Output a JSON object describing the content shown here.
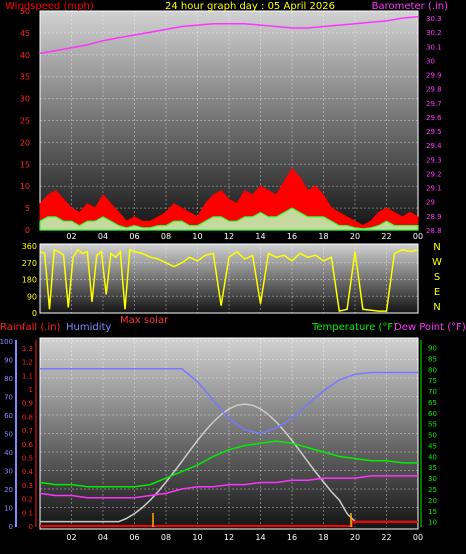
{
  "chart_data": [
    {
      "type": "line",
      "title": "24 hour graph day : 05 April 2026",
      "left_axis_label": "Windspeed (mph)",
      "right_axis_label": "Barometer (.in)",
      "x_ticks": [
        "02",
        "04",
        "06",
        "08",
        "10",
        "12",
        "14",
        "16",
        "18",
        "20",
        "22",
        "00"
      ],
      "left_ticks": [
        "0",
        "5",
        "10",
        "15",
        "20",
        "25",
        "30",
        "35",
        "40",
        "45",
        "50"
      ],
      "left_ylim": [
        0,
        50
      ],
      "right_ticks": [
        "28.8",
        "28.9",
        "29",
        "29.1",
        "29.2",
        "29.3",
        "29.4",
        "29.5",
        "29.6",
        "29.7",
        "29.8",
        "29.9",
        "30",
        "30.1",
        "30.2",
        "30.3"
      ],
      "right_ylim": [
        28.8,
        30.35
      ],
      "x_range": [
        0,
        24
      ],
      "series": [
        {
          "name": "Barometer",
          "color": "#ff33ff",
          "x": [
            0,
            1,
            2,
            3,
            4,
            5,
            6,
            7,
            8,
            9,
            10,
            11,
            12,
            13,
            14,
            15,
            16,
            17,
            18,
            19,
            20,
            21,
            22,
            23,
            24
          ],
          "values": [
            30.05,
            30.07,
            30.09,
            30.11,
            30.14,
            30.16,
            30.18,
            30.2,
            30.22,
            30.24,
            30.25,
            30.26,
            30.26,
            30.26,
            30.25,
            30.24,
            30.23,
            30.23,
            30.24,
            30.25,
            30.26,
            30.27,
            30.28,
            30.3,
            30.31
          ]
        },
        {
          "name": "Gust",
          "color": "#ff0000",
          "x": [
            0,
            0.5,
            1,
            1.5,
            2,
            2.5,
            3,
            3.5,
            4,
            4.5,
            5,
            5.5,
            6,
            6.5,
            7,
            7.5,
            8,
            8.5,
            9,
            9.5,
            10,
            10.5,
            11,
            11.5,
            12,
            12.5,
            13,
            13.5,
            14,
            14.5,
            15,
            15.5,
            16,
            16.5,
            17,
            17.5,
            18,
            18.5,
            19,
            19.5,
            20,
            20.5,
            21,
            21.5,
            22,
            22.5,
            23,
            23.5,
            24
          ],
          "values": [
            6,
            8,
            9,
            7,
            5,
            4,
            6,
            5,
            8,
            6,
            4,
            2,
            3,
            2,
            2,
            3,
            4,
            6,
            5,
            4,
            3,
            6,
            8,
            9,
            7,
            6,
            9,
            8,
            10,
            9,
            8,
            11,
            14,
            12,
            9,
            10,
            8,
            5,
            4,
            3,
            2,
            1,
            2,
            4,
            5,
            4,
            3,
            4,
            3
          ]
        },
        {
          "name": "Wind",
          "color": "#33ff33",
          "x": [
            0,
            0.5,
            1,
            1.5,
            2,
            2.5,
            3,
            3.5,
            4,
            4.5,
            5,
            5.5,
            6,
            6.5,
            7,
            7.5,
            8,
            8.5,
            9,
            9.5,
            10,
            10.5,
            11,
            11.5,
            12,
            12.5,
            13,
            13.5,
            14,
            14.5,
            15,
            15.5,
            16,
            16.5,
            17,
            17.5,
            18,
            18.5,
            19,
            19.5,
            20,
            20.5,
            21,
            21.5,
            22,
            22.5,
            23,
            23.5,
            24
          ],
          "values": [
            2,
            3,
            3,
            2,
            2,
            1,
            2,
            2,
            3,
            2,
            1,
            0.5,
            1,
            0.5,
            0.5,
            1,
            1,
            2,
            2,
            1,
            1,
            2,
            3,
            3,
            2,
            2,
            3,
            3,
            4,
            3,
            3,
            4,
            5,
            4,
            3,
            3,
            3,
            2,
            1,
            1,
            0.5,
            0.3,
            0.5,
            1,
            2,
            1,
            1,
            1,
            1
          ]
        }
      ]
    },
    {
      "type": "line",
      "left_ticks": [
        "0",
        "90",
        "180",
        "270",
        "360"
      ],
      "ylim": [
        0,
        360
      ],
      "compass_labels": [
        "N",
        "W",
        "S",
        "E",
        "N"
      ],
      "x_range": [
        0,
        24
      ],
      "series": [
        {
          "name": "Wind direction",
          "color": "#ffff00",
          "x": [
            0,
            0.3,
            0.6,
            0.9,
            1.2,
            1.5,
            1.8,
            2.1,
            2.4,
            2.7,
            3.0,
            3.3,
            3.6,
            3.9,
            4.2,
            4.5,
            4.8,
            5.1,
            5.4,
            5.7,
            6.0,
            6.5,
            7.0,
            7.5,
            8.0,
            8.5,
            9.0,
            9.5,
            10.0,
            10.5,
            11.0,
            11.5,
            12.0,
            12.5,
            13.0,
            13.5,
            14.0,
            14.5,
            15.0,
            15.5,
            16.0,
            16.5,
            17.0,
            17.5,
            18.0,
            18.5,
            19.0,
            19.5,
            20.0,
            20.5,
            21.0,
            21.5,
            22.0,
            22.5,
            23.0,
            23.5,
            24.0
          ],
          "values": [
            330,
            320,
            20,
            340,
            330,
            310,
            30,
            300,
            340,
            320,
            330,
            60,
            310,
            330,
            100,
            320,
            300,
            330,
            20,
            340,
            330,
            320,
            300,
            290,
            270,
            250,
            270,
            300,
            280,
            310,
            320,
            40,
            300,
            330,
            290,
            310,
            50,
            320,
            300,
            310,
            280,
            320,
            300,
            310,
            280,
            300,
            10,
            20,
            330,
            20,
            15,
            10,
            10,
            320,
            340,
            330,
            340
          ]
        }
      ]
    },
    {
      "type": "line",
      "annotation": "Max solar",
      "left_axis_labels": [
        "Rainfall (.in)",
        "Humidity"
      ],
      "right_axis_labels": [
        "Temperature (°F)",
        "Dew Point (°F)"
      ],
      "x_ticks": [
        "02",
        "04",
        "06",
        "08",
        "10",
        "12",
        "14",
        "16",
        "18",
        "20",
        "22",
        "00"
      ],
      "humidity_ticks": [
        "0",
        "10",
        "20",
        "30",
        "40",
        "50",
        "60",
        "70",
        "80",
        "90",
        "100"
      ],
      "humidity_ylim": [
        0,
        100
      ],
      "rain_ticks": [
        "0",
        "0.1",
        "0.2",
        "0.3",
        "0.4",
        "0.5",
        "0.6",
        "0.7",
        "0.8",
        "0.9",
        "1",
        "1.1",
        "1.2",
        "1.3"
      ],
      "rain_ylim": [
        0,
        1.35
      ],
      "temp_ticks": [
        "10",
        "15",
        "20",
        "25",
        "30",
        "35",
        "40",
        "45",
        "50",
        "55",
        "60",
        "65",
        "70",
        "75",
        "80",
        "85",
        "90"
      ],
      "temp_ylim": [
        8,
        93
      ],
      "x_range": [
        0,
        24
      ],
      "series": [
        {
          "name": "Humidity",
          "color": "#7777ff",
          "x": [
            0,
            1,
            2,
            3,
            4,
            5,
            6,
            7,
            8,
            9,
            10,
            11,
            12,
            13,
            14,
            15,
            16,
            17,
            18,
            19,
            20,
            21,
            22,
            23,
            24
          ],
          "values": [
            85,
            85,
            85,
            85,
            85,
            85,
            85,
            85,
            85,
            85,
            78,
            68,
            58,
            52,
            50,
            53,
            58,
            66,
            73,
            79,
            82,
            83,
            83,
            83,
            83
          ]
        },
        {
          "name": "Temperature",
          "color": "#00ee00",
          "x": [
            0,
            1,
            2,
            3,
            4,
            5,
            6,
            7,
            8,
            9,
            10,
            11,
            12,
            13,
            14,
            15,
            16,
            17,
            18,
            19,
            20,
            21,
            22,
            23,
            24
          ],
          "values": [
            28,
            27,
            27,
            26,
            26,
            26,
            26,
            27,
            30,
            33,
            36,
            40,
            43,
            45,
            46,
            47,
            46,
            44,
            42,
            40,
            39,
            38,
            38,
            37,
            37
          ]
        },
        {
          "name": "Dew Point",
          "color": "#ff33ff",
          "x": [
            0,
            1,
            2,
            3,
            4,
            5,
            6,
            7,
            8,
            9,
            10,
            11,
            12,
            13,
            14,
            15,
            16,
            17,
            18,
            19,
            20,
            21,
            22,
            23,
            24
          ],
          "values": [
            23,
            22,
            22,
            21,
            21,
            21,
            21,
            22,
            23,
            25,
            26,
            26,
            27,
            27,
            28,
            28,
            29,
            29,
            30,
            30,
            30,
            31,
            31,
            31,
            31
          ]
        },
        {
          "name": "Max solar",
          "color": "#cccccc",
          "x": [
            0,
            5,
            5.5,
            6,
            6.5,
            7,
            7.5,
            8,
            8.5,
            9,
            9.5,
            10,
            10.5,
            11,
            11.5,
            12,
            12.5,
            13,
            13.5,
            14,
            14.5,
            15,
            15.5,
            16,
            16.5,
            17,
            17.5,
            18,
            18.5,
            19,
            19.5,
            20,
            24
          ],
          "values": [
            10,
            10,
            11.5,
            13.7,
            16.5,
            19.9,
            23.8,
            28.2,
            32.8,
            37.6,
            42.5,
            47.3,
            51.8,
            55.8,
            59.2,
            61.8,
            63.5,
            64,
            63.5,
            61.8,
            59.2,
            55.8,
            51.8,
            47.3,
            42.5,
            37.6,
            32.8,
            28.2,
            23.8,
            19.9,
            13.7,
            10,
            10
          ]
        },
        {
          "name": "Rainfall",
          "color": "#ff0000",
          "x": [
            0,
            19.8,
            19.8,
            24
          ],
          "values": [
            0,
            0,
            0.03,
            0.03
          ]
        }
      ]
    }
  ]
}
